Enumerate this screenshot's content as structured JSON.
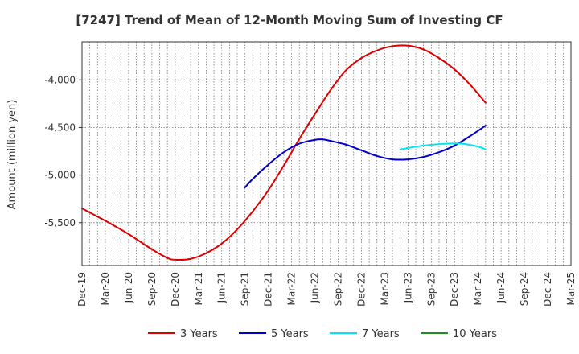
{
  "chart_data": {
    "type": "line",
    "title": "[7247]  Trend of Mean of 12-Month Moving Sum of Investing CF",
    "xlabel": "",
    "ylabel": "Amount (million yen)",
    "ylim": [
      -5950,
      -3600
    ],
    "yticks": [
      -4000,
      -4500,
      -5000,
      -5500
    ],
    "ytick_labels": [
      "-4,000",
      "-4,500",
      "-5,000",
      "-5,500"
    ],
    "x_start": "Dec-19",
    "x_end": "Mar-25",
    "x_months_total": 63,
    "xtick_labels": [
      "Dec-19",
      "Mar-20",
      "Jun-20",
      "Sep-20",
      "Dec-20",
      "Mar-21",
      "Jun-21",
      "Sep-21",
      "Dec-21",
      "Mar-22",
      "Jun-22",
      "Sep-22",
      "Dec-22",
      "Mar-23",
      "Jun-23",
      "Sep-23",
      "Dec-23",
      "Mar-24",
      "Jun-24",
      "Sep-24",
      "Dec-24",
      "Mar-25"
    ],
    "grid": true,
    "legend_position": "bottom",
    "series": [
      {
        "name": "3 Years",
        "color": "#dd0000",
        "points": [
          [
            0,
            -5350
          ],
          [
            3,
            -5480
          ],
          [
            6,
            -5620
          ],
          [
            9,
            -5780
          ],
          [
            11,
            -5870
          ],
          [
            12,
            -5890
          ],
          [
            14,
            -5880
          ],
          [
            16,
            -5820
          ],
          [
            18,
            -5720
          ],
          [
            20,
            -5570
          ],
          [
            22,
            -5380
          ],
          [
            24,
            -5160
          ],
          [
            26,
            -4900
          ],
          [
            28,
            -4620
          ],
          [
            30,
            -4360
          ],
          [
            32,
            -4110
          ],
          [
            34,
            -3900
          ],
          [
            36,
            -3770
          ],
          [
            38,
            -3690
          ],
          [
            40,
            -3645
          ],
          [
            42,
            -3640
          ],
          [
            44,
            -3680
          ],
          [
            46,
            -3770
          ],
          [
            48,
            -3890
          ],
          [
            50,
            -4050
          ],
          [
            52,
            -4240
          ]
        ]
      },
      {
        "name": "5 Years",
        "color": "#0000cc",
        "points": [
          [
            21,
            -5130
          ],
          [
            22,
            -5040
          ],
          [
            24,
            -4890
          ],
          [
            26,
            -4760
          ],
          [
            28,
            -4670
          ],
          [
            30,
            -4630
          ],
          [
            31,
            -4625
          ],
          [
            32,
            -4640
          ],
          [
            34,
            -4680
          ],
          [
            36,
            -4740
          ],
          [
            38,
            -4800
          ],
          [
            40,
            -4835
          ],
          [
            42,
            -4835
          ],
          [
            44,
            -4810
          ],
          [
            46,
            -4760
          ],
          [
            48,
            -4690
          ],
          [
            50,
            -4590
          ],
          [
            52,
            -4480
          ]
        ]
      },
      {
        "name": "7 Years",
        "color": "#00e5ee",
        "points": [
          [
            41,
            -4730
          ],
          [
            44,
            -4690
          ],
          [
            47,
            -4670
          ],
          [
            49,
            -4670
          ],
          [
            51,
            -4700
          ],
          [
            52,
            -4730
          ]
        ]
      },
      {
        "name": "10 Years",
        "color": "#228b22",
        "points": []
      }
    ]
  }
}
